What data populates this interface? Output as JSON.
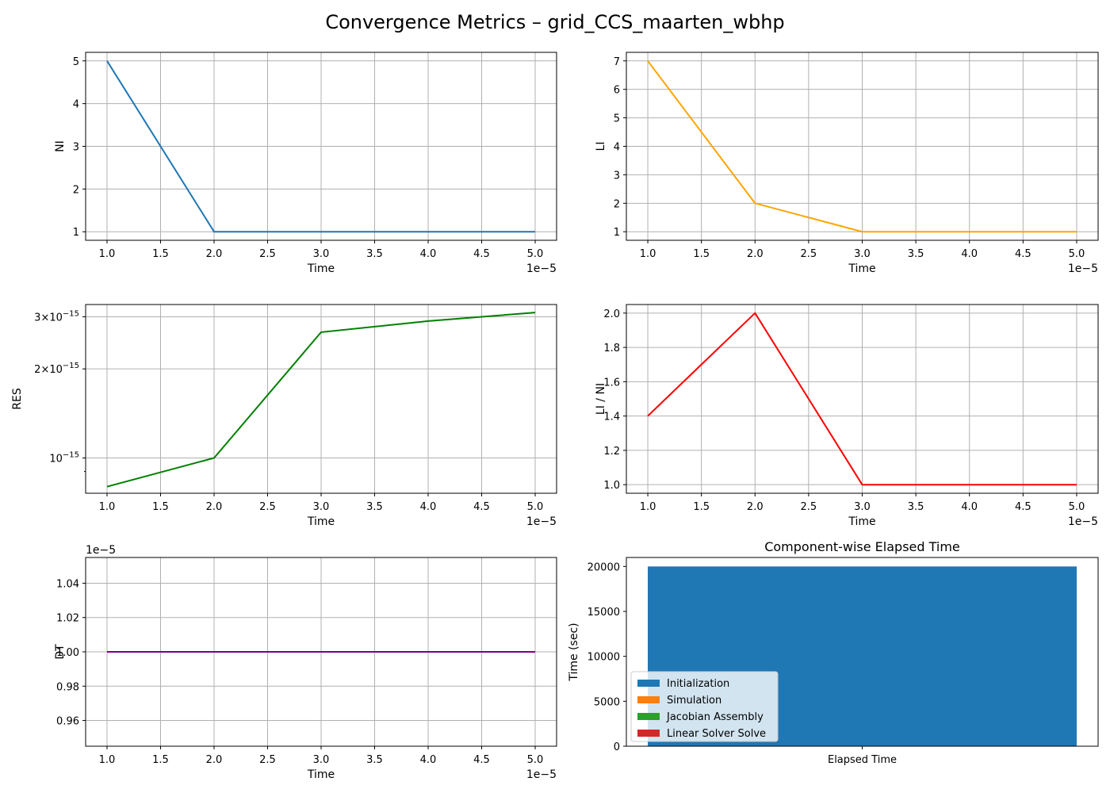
{
  "figure": {
    "title": "Convergence Metrics – grid_CCS_maarten_wbhp"
  },
  "chart_data": [
    {
      "id": "ni",
      "type": "line",
      "xlabel": "Time",
      "ylabel": "NI",
      "x": [
        1e-05,
        2e-05,
        3e-05,
        4e-05,
        5e-05
      ],
      "x_offset_text": "1e−5",
      "xticks": [
        1e-05,
        1.5e-05,
        2e-05,
        2.5e-05,
        3e-05,
        3.5e-05,
        4e-05,
        4.5e-05,
        5e-05
      ],
      "xtick_labels": [
        "1.0",
        "1.5",
        "2.0",
        "2.5",
        "3.0",
        "3.5",
        "4.0",
        "4.5",
        "5.0"
      ],
      "series": [
        {
          "values": [
            5,
            1,
            1,
            1,
            1
          ],
          "color": "#1f77b4"
        }
      ],
      "yticks": [
        1,
        2,
        3,
        4,
        5
      ],
      "ytick_labels": [
        "1",
        "2",
        "3",
        "4",
        "5"
      ],
      "xlim": [
        8e-06,
        5.2e-05
      ],
      "ylim": [
        0.8,
        5.2
      ],
      "grid": true
    },
    {
      "id": "li",
      "type": "line",
      "xlabel": "Time",
      "ylabel": "LI",
      "x": [
        1e-05,
        2e-05,
        3e-05,
        4e-05,
        5e-05
      ],
      "x_offset_text": "1e−5",
      "xticks": [
        1e-05,
        1.5e-05,
        2e-05,
        2.5e-05,
        3e-05,
        3.5e-05,
        4e-05,
        4.5e-05,
        5e-05
      ],
      "xtick_labels": [
        "1.0",
        "1.5",
        "2.0",
        "2.5",
        "3.0",
        "3.5",
        "4.0",
        "4.5",
        "5.0"
      ],
      "series": [
        {
          "values": [
            7,
            2,
            1,
            1,
            1
          ],
          "color": "#ffa500"
        }
      ],
      "yticks": [
        1,
        2,
        3,
        4,
        5,
        6,
        7
      ],
      "ytick_labels": [
        "1",
        "2",
        "3",
        "4",
        "5",
        "6",
        "7"
      ],
      "xlim": [
        8e-06,
        5.2e-05
      ],
      "ylim": [
        0.7,
        7.3
      ],
      "grid": true
    },
    {
      "id": "res",
      "type": "line",
      "xlabel": "Time",
      "ylabel": "RES",
      "yscale": "log",
      "x": [
        1e-05,
        2e-05,
        3e-05,
        4e-05,
        5e-05
      ],
      "x_offset_text": "1e−5",
      "xticks": [
        1e-05,
        1.5e-05,
        2e-05,
        2.5e-05,
        3e-05,
        3.5e-05,
        4e-05,
        4.5e-05,
        5e-05
      ],
      "xtick_labels": [
        "1.0",
        "1.5",
        "2.0",
        "2.5",
        "3.0",
        "3.5",
        "4.0",
        "4.5",
        "5.0"
      ],
      "series": [
        {
          "values": [
            8e-16,
            1e-15,
            2.66e-15,
            2.9e-15,
            3.1e-15
          ],
          "color": "#008000"
        }
      ],
      "yticks": [
        1e-15,
        2e-15,
        3e-15
      ],
      "ytick_mantissa": [
        "10",
        "2×10",
        "3×10"
      ],
      "ytick_exponent": [
        "−15",
        "−15",
        "−15"
      ],
      "yminor_ticks": [
        9e-16
      ],
      "xlim": [
        8e-06,
        5.2e-05
      ],
      "ylim": [
        7.6e-16,
        3.3e-15
      ],
      "grid": true
    },
    {
      "id": "ratio",
      "type": "line",
      "xlabel": "Time",
      "ylabel": "LI / NI",
      "x": [
        1e-05,
        2e-05,
        3e-05,
        4e-05,
        5e-05
      ],
      "x_offset_text": "1e−5",
      "xticks": [
        1e-05,
        1.5e-05,
        2e-05,
        2.5e-05,
        3e-05,
        3.5e-05,
        4e-05,
        4.5e-05,
        5e-05
      ],
      "xtick_labels": [
        "1.0",
        "1.5",
        "2.0",
        "2.5",
        "3.0",
        "3.5",
        "4.0",
        "4.5",
        "5.0"
      ],
      "series": [
        {
          "values": [
            1.4,
            2.0,
            1.0,
            1.0,
            1.0
          ],
          "color": "#ff0000"
        }
      ],
      "yticks": [
        1.0,
        1.2,
        1.4,
        1.6,
        1.8,
        2.0
      ],
      "ytick_labels": [
        "1.0",
        "1.2",
        "1.4",
        "1.6",
        "1.8",
        "2.0"
      ],
      "xlim": [
        8e-06,
        5.2e-05
      ],
      "ylim": [
        0.95,
        2.05
      ],
      "grid": true
    },
    {
      "id": "dt",
      "type": "line",
      "xlabel": "Time",
      "ylabel": "DT",
      "x": [
        1e-05,
        2e-05,
        3e-05,
        4e-05,
        5e-05
      ],
      "x_offset_text": "1e−5",
      "xticks": [
        1e-05,
        1.5e-05,
        2e-05,
        2.5e-05,
        3e-05,
        3.5e-05,
        4e-05,
        4.5e-05,
        5e-05
      ],
      "xtick_labels": [
        "1.0",
        "1.5",
        "2.0",
        "2.5",
        "3.0",
        "3.5",
        "4.0",
        "4.5",
        "5.0"
      ],
      "series": [
        {
          "values": [
            1e-05,
            1e-05,
            1e-05,
            1e-05,
            1e-05
          ],
          "color": "#800080"
        }
      ],
      "y_offset_text": "1e−5",
      "yticks": [
        9.6e-06,
        9.8e-06,
        1e-05,
        1.02e-05,
        1.04e-05
      ],
      "ytick_labels": [
        "0.96",
        "0.98",
        "1.00",
        "1.02",
        "1.04"
      ],
      "xlim": [
        8e-06,
        5.2e-05
      ],
      "ylim": [
        9.45e-06,
        1.055e-05
      ],
      "grid": true
    },
    {
      "id": "elapsed",
      "type": "bar",
      "title": "Component-wise Elapsed Time",
      "ylabel": "Time (sec)",
      "categories": [
        "Elapsed Time"
      ],
      "series": [
        {
          "name": "Initialization",
          "values": [
            20000
          ],
          "color": "#1f77b4"
        },
        {
          "name": "Simulation",
          "values": [
            0
          ],
          "color": "#ff7f0e"
        },
        {
          "name": "Jacobian Assembly",
          "values": [
            0
          ],
          "color": "#2ca02c"
        },
        {
          "name": "Linear Solver Solve",
          "values": [
            0
          ],
          "color": "#d62728"
        }
      ],
      "yticks": [
        0,
        5000,
        10000,
        15000,
        20000
      ],
      "ytick_labels": [
        "0",
        "5000",
        "10000",
        "15000",
        "20000"
      ],
      "ylim": [
        0,
        21000
      ],
      "legend": "center-left",
      "grid": false
    }
  ]
}
